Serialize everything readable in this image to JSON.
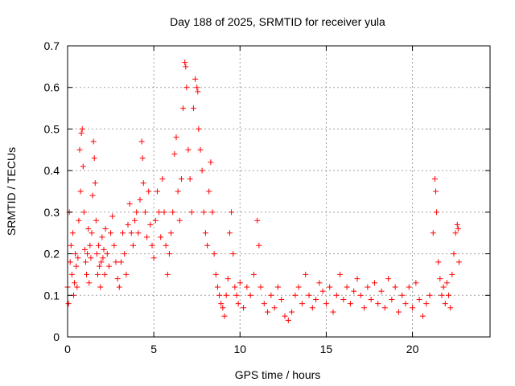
{
  "chart_data": {
    "type": "scatter",
    "title": "Day 188 of 2025, SRMTID for receiver yula",
    "xlabel": "GPS time / hours",
    "ylabel": "SRMTID / TECUs",
    "xlim": [
      0,
      24.5
    ],
    "ylim": [
      0,
      0.7
    ],
    "xticks": [
      0,
      5,
      10,
      15,
      20
    ],
    "xtick_labels": [
      "0",
      "5",
      "10",
      "15",
      "20"
    ],
    "yticks": [
      0,
      0.1,
      0.2,
      0.3,
      0.4,
      0.5,
      0.6,
      0.7
    ],
    "ytick_labels": [
      "0",
      "0.1",
      "0.2",
      "0.3",
      "0.4",
      "0.5",
      "0.6",
      "0.7"
    ],
    "grid": true,
    "marker": "plus",
    "marker_color": "#ff0000",
    "series": [
      {
        "name": "SRMTID",
        "points": [
          [
            0.0,
            0.12
          ],
          [
            0.05,
            0.08
          ],
          [
            0.1,
            0.3
          ],
          [
            0.15,
            0.18
          ],
          [
            0.2,
            0.22
          ],
          [
            0.25,
            0.15
          ],
          [
            0.3,
            0.25
          ],
          [
            0.35,
            0.1
          ],
          [
            0.4,
            0.13
          ],
          [
            0.45,
            0.2
          ],
          [
            0.5,
            0.17
          ],
          [
            0.55,
            0.12
          ],
          [
            0.6,
            0.19
          ],
          [
            0.65,
            0.28
          ],
          [
            0.7,
            0.45
          ],
          [
            0.75,
            0.35
          ],
          [
            0.8,
            0.49
          ],
          [
            0.85,
            0.5
          ],
          [
            0.9,
            0.41
          ],
          [
            0.95,
            0.3
          ],
          [
            1.0,
            0.21
          ],
          [
            1.05,
            0.18
          ],
          [
            1.1,
            0.15
          ],
          [
            1.15,
            0.2
          ],
          [
            1.2,
            0.26
          ],
          [
            1.25,
            0.13
          ],
          [
            1.3,
            0.22
          ],
          [
            1.35,
            0.19
          ],
          [
            1.4,
            0.25
          ],
          [
            1.45,
            0.34
          ],
          [
            1.5,
            0.47
          ],
          [
            1.55,
            0.43
          ],
          [
            1.6,
            0.37
          ],
          [
            1.65,
            0.28
          ],
          [
            1.7,
            0.2
          ],
          [
            1.75,
            0.15
          ],
          [
            1.8,
            0.22
          ],
          [
            1.85,
            0.17
          ],
          [
            1.9,
            0.12
          ],
          [
            1.95,
            0.18
          ],
          [
            2.0,
            0.24
          ],
          [
            2.05,
            0.19
          ],
          [
            2.1,
            0.21
          ],
          [
            2.15,
            0.15
          ],
          [
            2.2,
            0.26
          ],
          [
            2.3,
            0.2
          ],
          [
            2.4,
            0.17
          ],
          [
            2.5,
            0.25
          ],
          [
            2.6,
            0.29
          ],
          [
            2.7,
            0.22
          ],
          [
            2.8,
            0.18
          ],
          [
            2.9,
            0.14
          ],
          [
            3.0,
            0.12
          ],
          [
            3.1,
            0.18
          ],
          [
            3.2,
            0.25
          ],
          [
            3.3,
            0.2
          ],
          [
            3.4,
            0.15
          ],
          [
            3.5,
            0.27
          ],
          [
            3.6,
            0.32
          ],
          [
            3.7,
            0.25
          ],
          [
            3.8,
            0.22
          ],
          [
            3.9,
            0.28
          ],
          [
            4.0,
            0.3
          ],
          [
            4.1,
            0.25
          ],
          [
            4.2,
            0.33
          ],
          [
            4.3,
            0.47
          ],
          [
            4.35,
            0.43
          ],
          [
            4.4,
            0.37
          ],
          [
            4.5,
            0.3
          ],
          [
            4.6,
            0.24
          ],
          [
            4.7,
            0.35
          ],
          [
            4.8,
            0.27
          ],
          [
            4.9,
            0.22
          ],
          [
            5.0,
            0.19
          ],
          [
            5.1,
            0.28
          ],
          [
            5.2,
            0.35
          ],
          [
            5.3,
            0.3
          ],
          [
            5.4,
            0.24
          ],
          [
            5.5,
            0.38
          ],
          [
            5.6,
            0.3
          ],
          [
            5.7,
            0.22
          ],
          [
            5.8,
            0.15
          ],
          [
            5.9,
            0.2
          ],
          [
            6.0,
            0.25
          ],
          [
            6.1,
            0.3
          ],
          [
            6.2,
            0.44
          ],
          [
            6.3,
            0.48
          ],
          [
            6.4,
            0.35
          ],
          [
            6.5,
            0.28
          ],
          [
            6.6,
            0.38
          ],
          [
            6.7,
            0.55
          ],
          [
            6.8,
            0.66
          ],
          [
            6.85,
            0.65
          ],
          [
            6.9,
            0.6
          ],
          [
            7.0,
            0.45
          ],
          [
            7.1,
            0.38
          ],
          [
            7.2,
            0.3
          ],
          [
            7.3,
            0.55
          ],
          [
            7.4,
            0.62
          ],
          [
            7.5,
            0.6
          ],
          [
            7.55,
            0.59
          ],
          [
            7.6,
            0.5
          ],
          [
            7.7,
            0.45
          ],
          [
            7.8,
            0.4
          ],
          [
            7.9,
            0.3
          ],
          [
            8.0,
            0.25
          ],
          [
            8.1,
            0.22
          ],
          [
            8.2,
            0.35
          ],
          [
            8.3,
            0.42
          ],
          [
            8.4,
            0.3
          ],
          [
            8.5,
            0.2
          ],
          [
            8.6,
            0.15
          ],
          [
            8.7,
            0.12
          ],
          [
            8.8,
            0.1
          ],
          [
            8.9,
            0.08
          ],
          [
            9.0,
            0.07
          ],
          [
            9.1,
            0.05
          ],
          [
            9.2,
            0.1
          ],
          [
            9.3,
            0.14
          ],
          [
            9.4,
            0.25
          ],
          [
            9.5,
            0.3
          ],
          [
            9.6,
            0.2
          ],
          [
            9.7,
            0.12
          ],
          [
            9.8,
            0.1
          ],
          [
            9.9,
            0.08
          ],
          [
            10.0,
            0.13
          ],
          [
            10.2,
            0.07
          ],
          [
            10.4,
            0.12
          ],
          [
            10.6,
            0.1
          ],
          [
            10.8,
            0.15
          ],
          [
            11.0,
            0.28
          ],
          [
            11.1,
            0.22
          ],
          [
            11.2,
            0.12
          ],
          [
            11.4,
            0.08
          ],
          [
            11.6,
            0.06
          ],
          [
            11.8,
            0.1
          ],
          [
            12.0,
            0.07
          ],
          [
            12.2,
            0.12
          ],
          [
            12.4,
            0.09
          ],
          [
            12.6,
            0.05
          ],
          [
            12.8,
            0.04
          ],
          [
            13.0,
            0.06
          ],
          [
            13.2,
            0.1
          ],
          [
            13.4,
            0.12
          ],
          [
            13.6,
            0.08
          ],
          [
            13.8,
            0.15
          ],
          [
            14.0,
            0.1
          ],
          [
            14.2,
            0.07
          ],
          [
            14.4,
            0.09
          ],
          [
            14.6,
            0.13
          ],
          [
            14.8,
            0.11
          ],
          [
            15.0,
            0.08
          ],
          [
            15.2,
            0.12
          ],
          [
            15.4,
            0.06
          ],
          [
            15.6,
            0.1
          ],
          [
            15.8,
            0.15
          ],
          [
            16.0,
            0.09
          ],
          [
            16.2,
            0.12
          ],
          [
            16.4,
            0.08
          ],
          [
            16.6,
            0.11
          ],
          [
            16.8,
            0.14
          ],
          [
            17.0,
            0.1
          ],
          [
            17.2,
            0.07
          ],
          [
            17.4,
            0.12
          ],
          [
            17.6,
            0.09
          ],
          [
            17.8,
            0.13
          ],
          [
            18.0,
            0.08
          ],
          [
            18.2,
            0.11
          ],
          [
            18.4,
            0.07
          ],
          [
            18.6,
            0.14
          ],
          [
            18.8,
            0.09
          ],
          [
            19.0,
            0.12
          ],
          [
            19.2,
            0.06
          ],
          [
            19.4,
            0.1
          ],
          [
            19.6,
            0.08
          ],
          [
            19.8,
            0.12
          ],
          [
            20.0,
            0.07
          ],
          [
            20.2,
            0.13
          ],
          [
            20.4,
            0.09
          ],
          [
            20.6,
            0.05
          ],
          [
            20.8,
            0.08
          ],
          [
            21.0,
            0.1
          ],
          [
            21.2,
            0.25
          ],
          [
            21.3,
            0.38
          ],
          [
            21.35,
            0.35
          ],
          [
            21.4,
            0.3
          ],
          [
            21.5,
            0.18
          ],
          [
            21.6,
            0.14
          ],
          [
            21.7,
            0.1
          ],
          [
            21.8,
            0.12
          ],
          [
            21.9,
            0.08
          ],
          [
            22.0,
            0.13
          ],
          [
            22.1,
            0.1
          ],
          [
            22.2,
            0.07
          ],
          [
            22.3,
            0.15
          ],
          [
            22.4,
            0.2
          ],
          [
            22.5,
            0.25
          ],
          [
            22.6,
            0.27
          ],
          [
            22.65,
            0.26
          ],
          [
            22.7,
            0.18
          ]
        ]
      }
    ]
  }
}
